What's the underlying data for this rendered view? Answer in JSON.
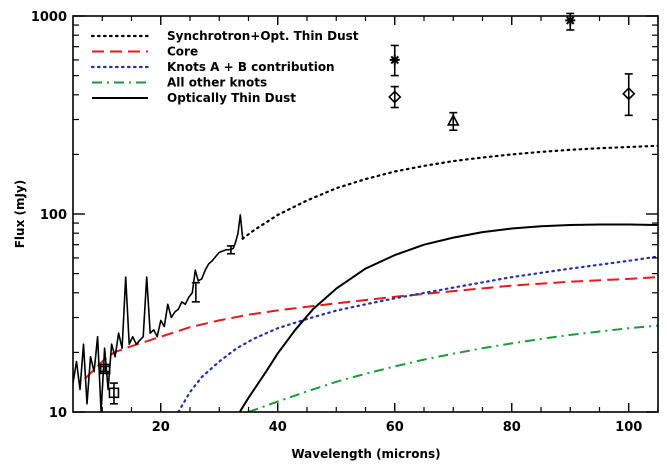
{
  "chart_data": {
    "type": "line",
    "title": "",
    "xlabel": "Wavelength (microns)",
    "ylabel": "Flux (mJy)",
    "xlim": [
      5,
      105
    ],
    "ylim": [
      10,
      1000
    ],
    "yscale": "log",
    "xticks": [
      20,
      40,
      60,
      80,
      100
    ],
    "xtick_labels": [
      "20",
      "40",
      "60",
      "80",
      "100"
    ],
    "yticks": [
      10,
      100,
      1000
    ],
    "ytick_labels": [
      "10",
      "100",
      "1000"
    ],
    "grid": false,
    "legend_position": "top-left",
    "series": [
      {
        "name": "Synchrotron+Opt. Thin Dust",
        "color": "#000000",
        "dash": "dotted",
        "x": [
          34,
          36,
          40,
          45,
          50,
          55,
          60,
          65,
          70,
          75,
          80,
          85,
          90,
          95,
          100,
          105
        ],
        "y": [
          75,
          83,
          99,
          117,
          135,
          150,
          164,
          175,
          185,
          193,
          200,
          206,
          211,
          215,
          218,
          221
        ]
      },
      {
        "name": "Core",
        "color": "#e41a1c",
        "dash": "dashed",
        "x": [
          7,
          10,
          12,
          15,
          20,
          25,
          30,
          35,
          40,
          45,
          50,
          60,
          70,
          80,
          90,
          100,
          105
        ],
        "y": [
          14.7,
          18,
          20,
          21.5,
          24,
          26.8,
          29,
          31,
          32.6,
          34,
          35.4,
          38.2,
          40.8,
          43.5,
          45.5,
          47,
          48
        ]
      },
      {
        "name": "Knots A + B contribution",
        "color": "#2233aa",
        "dash": "dotted",
        "x": [
          23,
          25,
          27,
          30,
          33,
          36,
          40,
          45,
          50,
          55,
          60,
          70,
          80,
          90,
          100,
          105
        ],
        "y": [
          10,
          12.6,
          15,
          18,
          21,
          23.5,
          26.5,
          29.5,
          32.5,
          35,
          37.5,
          42.5,
          48,
          53,
          58,
          61
        ]
      },
      {
        "name": "All other knots",
        "color": "#1a9a3a",
        "dash": "dashdot",
        "x": [
          35,
          40,
          45,
          50,
          55,
          60,
          65,
          70,
          75,
          80,
          85,
          90,
          95,
          100,
          105
        ],
        "y": [
          10,
          11.3,
          12.7,
          14.2,
          15.6,
          17,
          18.4,
          19.7,
          21,
          22.2,
          23.4,
          24.5,
          25.5,
          26.5,
          27.3
        ]
      },
      {
        "name": "Optically Thin Dust",
        "color": "#000000",
        "dash": "solid",
        "x": [
          33.5,
          35,
          38,
          40,
          43,
          46,
          50,
          55,
          60,
          65,
          70,
          75,
          80,
          85,
          90,
          95,
          100,
          105
        ],
        "y": [
          10,
          11.8,
          16,
          19.8,
          26,
          33,
          42,
          53,
          62,
          70,
          76,
          81,
          84.5,
          86.7,
          88,
          88.5,
          88.5,
          88
        ]
      },
      {
        "name": "",
        "color": "#000000",
        "dash": "solid",
        "x": [
          5,
          5.6,
          6.2,
          6.8,
          7.4,
          8,
          8.6,
          9.2,
          9.8,
          10.4,
          11,
          11.6,
          12.2,
          12.8,
          13.4,
          14,
          14.6,
          15.2,
          15.8,
          16.4,
          17,
          17.6,
          18.2,
          18.8,
          19.4,
          20,
          20.6,
          21.2,
          21.8,
          22.4,
          23,
          23.6,
          24.2,
          24.8,
          25.4,
          25.9,
          26.4,
          27,
          27.6,
          28.2,
          28.8,
          29.4,
          30,
          30.6,
          31.2,
          31.8,
          32.4,
          32.8,
          33.2,
          33.6,
          34
        ],
        "y": [
          14,
          18,
          13,
          22,
          11,
          19,
          16,
          24,
          10,
          21,
          13,
          22,
          19,
          25,
          21,
          48,
          22,
          24,
          22,
          23,
          24,
          48,
          25,
          26,
          24,
          29,
          27,
          35,
          30,
          32,
          33,
          36,
          35,
          38,
          40,
          52,
          46,
          47,
          52,
          56,
          58,
          61,
          64,
          65,
          66,
          66,
          67,
          72,
          80,
          99,
          76
        ]
      }
    ],
    "markers": [
      {
        "shape": "square",
        "x": 10.5,
        "y": 16.5,
        "err_low": 16.0,
        "err_high": 17.0
      },
      {
        "shape": "square",
        "x": 12,
        "y": 12.5,
        "err_low": 11.0,
        "err_high": 14.0
      },
      {
        "shape": "asterisk",
        "x": 60,
        "y": 600,
        "err_low": 500,
        "err_high": 710
      },
      {
        "shape": "diamond",
        "x": 60,
        "y": 390,
        "err_low": 345,
        "err_high": 440
      },
      {
        "shape": "triangle",
        "x": 70,
        "y": 295,
        "err_low": 265,
        "err_high": 325
      },
      {
        "shape": "asterisk",
        "x": 90,
        "y": 950,
        "err_low": 850,
        "err_high": 1030
      },
      {
        "shape": "diamond",
        "x": 100,
        "y": 405,
        "err_low": 315,
        "err_high": 510
      },
      {
        "shape": "errorbar",
        "x": 26,
        "y": 40,
        "err_low": 36,
        "err_high": 45
      },
      {
        "shape": "errorbar",
        "x": 32,
        "y": 66,
        "err_low": 63,
        "err_high": 69
      }
    ]
  }
}
